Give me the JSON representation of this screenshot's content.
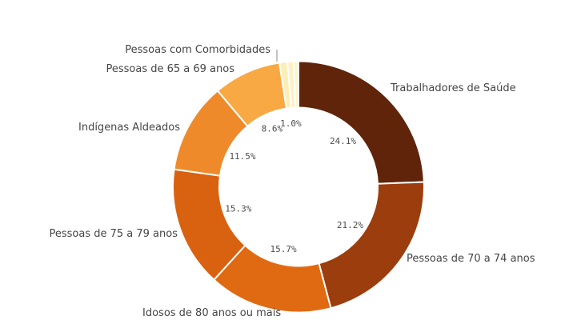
{
  "chart_data": {
    "type": "pie",
    "variant": "donut",
    "title": "",
    "unit": "%",
    "layout": {
      "legend": false,
      "start_angle_deg": 0,
      "direction": "clockwise",
      "value_labels": "inside-hole",
      "category_labels": "outside",
      "background": "#ffffff"
    },
    "text_color": "#454545",
    "separator_color": "#ffffff",
    "slices": [
      {
        "label": "Trabalhadores de Saúde",
        "value": 24.1,
        "pct_label": "24.1%",
        "color": "#5f2409"
      },
      {
        "label": "Pessoas de 70 a 74 anos",
        "value": 21.2,
        "pct_label": "21.2%",
        "color": "#9c3d0e"
      },
      {
        "label": "Idosos de 80 anos ou mais",
        "value": 15.7,
        "pct_label": "15.7%",
        "color": "#e06a12"
      },
      {
        "label": "Pessoas de 75 a 79 anos",
        "value": 15.3,
        "pct_label": "15.3%",
        "color": "#d96210"
      },
      {
        "label": "Indígenas Aldeados",
        "value": 11.5,
        "pct_label": "11.5%",
        "color": "#ef8a2b"
      },
      {
        "label": "Pessoas de 65 a 69 anos",
        "value": 8.6,
        "pct_label": "8.6%",
        "color": "#f8a944"
      },
      {
        "label": "Pessoas com Comorbidades",
        "value": 1.0,
        "pct_label": "1.0%",
        "color": "#fceeb8"
      },
      {
        "label": "",
        "value": 0.8,
        "pct_label": "",
        "color": "#fdf0c2"
      },
      {
        "label": "",
        "value": 0.6,
        "pct_label": "",
        "color": "#fdf3cc"
      }
    ]
  }
}
